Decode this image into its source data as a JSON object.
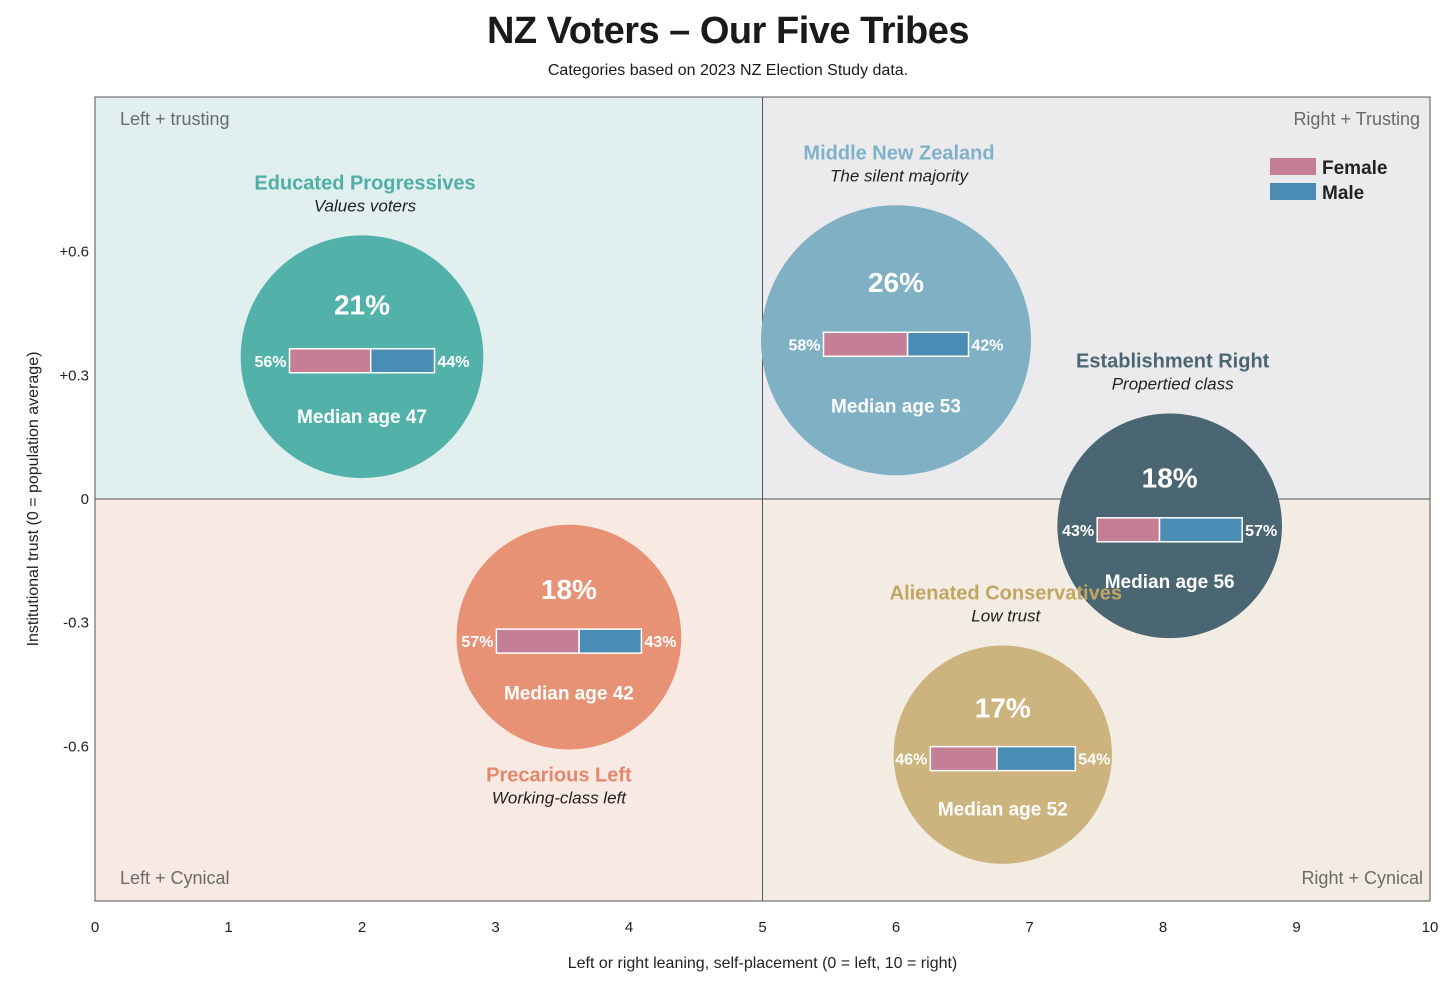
{
  "title": "NZ Voters – Our Five Tribes",
  "subtitle": "Categories based on 2023 NZ Election Study data.",
  "chart_data": {
    "type": "scatter",
    "xlabel": "Left or right leaning, self-placement (0 = left, 10 = right)",
    "ylabel": "Institutional trust (0 = population average)",
    "xlim": [
      0,
      10
    ],
    "ylim": [
      -0.975,
      0.975
    ],
    "x_ticks": [
      {
        "value": 0,
        "label": "0"
      },
      {
        "value": 1,
        "label": "1"
      },
      {
        "value": 2,
        "label": "2"
      },
      {
        "value": 3,
        "label": "3"
      },
      {
        "value": 4,
        "label": "4"
      },
      {
        "value": 5,
        "label": "5"
      },
      {
        "value": 6,
        "label": "6"
      },
      {
        "value": 7,
        "label": "7"
      },
      {
        "value": 8,
        "label": "8"
      },
      {
        "value": 9,
        "label": "9"
      },
      {
        "value": 10,
        "label": "10"
      }
    ],
    "y_ticks": [
      {
        "value": 0.6,
        "label": "+0.6"
      },
      {
        "value": 0.3,
        "label": "+0.3"
      },
      {
        "value": 0,
        "label": "0"
      },
      {
        "value": -0.3,
        "label": "-0.3"
      },
      {
        "value": -0.6,
        "label": "-0.6"
      }
    ],
    "quadrants": [
      {
        "label": "Left + trusting",
        "position": "top-left",
        "color": "#e1efee"
      },
      {
        "label": "Right + Trusting",
        "position": "top-right",
        "color": "#ebebed"
      },
      {
        "label": "Left + Cynical",
        "position": "bottom-left",
        "color": "#f9e9e3"
      },
      {
        "label": "Right + Cynical",
        "position": "bottom-right",
        "color": "#f3ece2"
      }
    ],
    "legend": {
      "placement": "top-right",
      "items": [
        {
          "label": "Female",
          "color": "#c47f97"
        },
        {
          "label": "Male",
          "color": "#4a8cb3"
        }
      ]
    },
    "series": [
      {
        "name": "Educated Progressives",
        "tagline": "Values voters",
        "x": 2.0,
        "y": 0.345,
        "share": 21,
        "share_label": "21%",
        "female": 56,
        "female_label": "56%",
        "male": 44,
        "male_label": "44%",
        "median_age_label": "Median age 47",
        "color": "#52b2aa",
        "name_color": "#4fafa6",
        "label_side": "above"
      },
      {
        "name": "Middle New Zealand",
        "tagline": "The silent majority",
        "x": 6.0,
        "y": 0.385,
        "share": 26,
        "share_label": "26%",
        "female": 58,
        "female_label": "58%",
        "male": 42,
        "male_label": "42%",
        "median_age_label": "Median age 53",
        "color": "#80b0c4",
        "name_color": "#7fb2c8",
        "label_side": "above"
      },
      {
        "name": "Establishment Right",
        "tagline": "Propertied class",
        "x": 8.05,
        "y": -0.065,
        "share": 18,
        "share_label": "18%",
        "female": 43,
        "female_label": "43%",
        "male": 57,
        "male_label": "57%",
        "median_age_label": "Median age 56",
        "color": "#4a6672",
        "name_color": "#4a6672",
        "label_side": "above"
      },
      {
        "name": "Precarious Left",
        "tagline": "Working-class left",
        "x": 3.55,
        "y": -0.335,
        "share": 18,
        "share_label": "18%",
        "female": 57,
        "female_label": "57%",
        "male": 43,
        "male_label": "43%",
        "median_age_label": "Median age 42",
        "color": "#e79275",
        "name_color": "#e5876b",
        "label_side": "below"
      },
      {
        "name": "Alienated Conservatives",
        "tagline": "Low trust",
        "x": 6.8,
        "y": -0.62,
        "share": 17,
        "share_label": "17%",
        "female": 46,
        "female_label": "46%",
        "male": 54,
        "male_label": "54%",
        "median_age_label": "Median age 52",
        "color": "#cdb47e",
        "name_color": "#c3a564",
        "label_side": "above"
      }
    ]
  }
}
